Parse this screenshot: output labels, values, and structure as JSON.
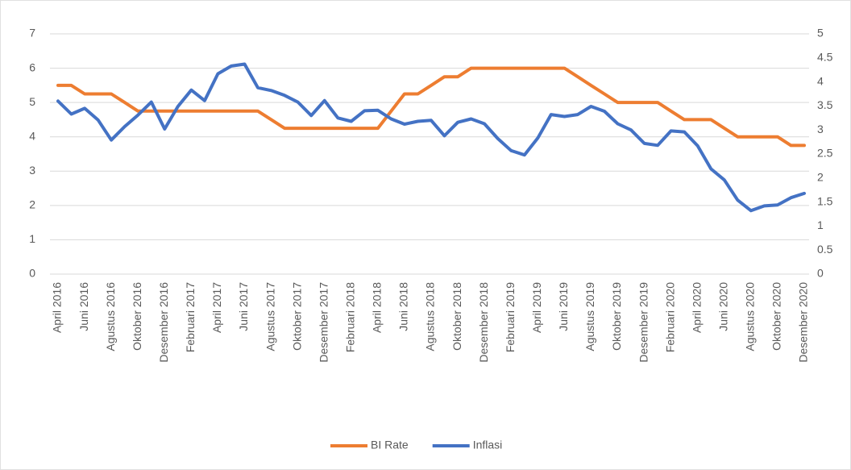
{
  "chart_data": {
    "type": "line",
    "categories": [
      "April 2016",
      null,
      "Juni 2016",
      null,
      "Agustus 2016",
      null,
      "Oktober 2016",
      null,
      "Desember 2016",
      null,
      "Februari 2017",
      null,
      "April 2017",
      null,
      "Juni 2017",
      null,
      "Agustus 2017",
      null,
      "Oktober 2017",
      null,
      "Desember 2017",
      null,
      "Februari 2018",
      null,
      "April 2018",
      null,
      "Juni 2018",
      null,
      "Agustus 2018",
      null,
      "Oktober 2018",
      null,
      "Desember 2018",
      null,
      "Februari 2019",
      null,
      "April 2019",
      null,
      "Juni 2019",
      null,
      "Agustus 2019",
      null,
      "Oktober 2019",
      null,
      "Desember 2019",
      null,
      "Februari 2020",
      null,
      "April 2020",
      null,
      "Juni 2020",
      null,
      "Agustus 2020",
      null,
      "Oktober 2020",
      null,
      "Desember 2020"
    ],
    "series": [
      {
        "name": "BI Rate",
        "color": "#ed7d31",
        "values": [
          5.5,
          5.5,
          5.25,
          5.25,
          5.25,
          5.0,
          4.75,
          4.75,
          4.75,
          4.75,
          4.75,
          4.75,
          4.75,
          4.75,
          4.75,
          4.75,
          4.5,
          4.25,
          4.25,
          4.25,
          4.25,
          4.25,
          4.25,
          4.25,
          4.25,
          4.75,
          5.25,
          5.25,
          5.5,
          5.75,
          5.75,
          6.0,
          6.0,
          6.0,
          6.0,
          6.0,
          6.0,
          6.0,
          6.0,
          5.75,
          5.5,
          5.25,
          5.0,
          5.0,
          5.0,
          5.0,
          4.75,
          4.5,
          4.5,
          4.5,
          4.25,
          4.0,
          4.0,
          4.0,
          4.0,
          3.75,
          3.75
        ]
      },
      {
        "name": "Inflasi",
        "color": "#4472c4",
        "axis": "y2",
        "values": [
          3.6,
          3.33,
          3.45,
          3.21,
          2.79,
          3.07,
          3.31,
          3.58,
          3.02,
          3.49,
          3.83,
          3.61,
          4.17,
          4.33,
          4.37,
          3.88,
          3.82,
          3.72,
          3.58,
          3.3,
          3.61,
          3.25,
          3.18,
          3.4,
          3.41,
          3.23,
          3.12,
          3.18,
          3.2,
          2.88,
          3.16,
          3.23,
          3.13,
          2.82,
          2.57,
          2.48,
          2.83,
          3.32,
          3.28,
          3.32,
          3.49,
          3.39,
          3.13,
          3.0,
          2.72,
          2.68,
          2.98,
          2.96,
          2.67,
          2.19,
          1.96,
          1.54,
          1.32,
          1.42,
          1.44,
          1.59,
          1.68
        ]
      }
    ],
    "ylim": [
      0,
      7
    ],
    "yticks": [
      0,
      1,
      2,
      3,
      4,
      5,
      6,
      7
    ],
    "y2lim": [
      0,
      5
    ],
    "y2ticks": [
      0,
      0.5,
      1,
      1.5,
      2,
      2.5,
      3,
      3.5,
      4,
      4.5,
      5
    ],
    "grid": true,
    "legend": "bottom"
  }
}
